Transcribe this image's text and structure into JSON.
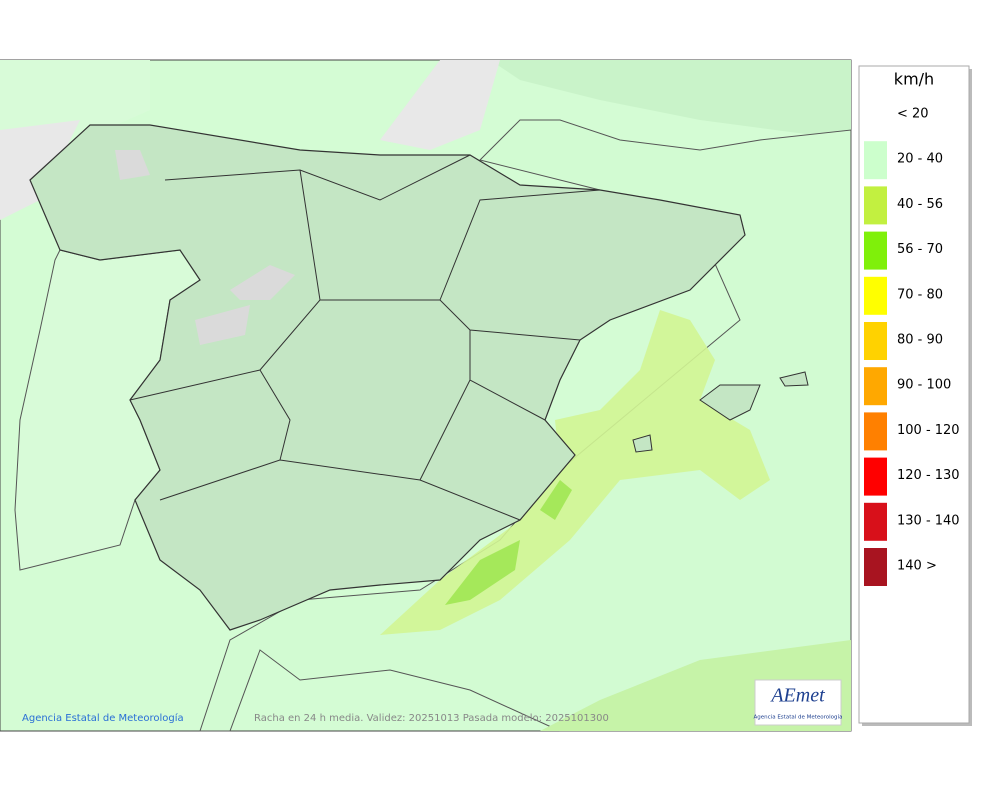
{
  "legend": {
    "title": "km/h",
    "items": [
      {
        "label": "< 20",
        "color": "#ffffff"
      },
      {
        "label": "20 - 40",
        "color": "#ccffcc"
      },
      {
        "label": "40 - 56",
        "color": "#c2f040"
      },
      {
        "label": "56 - 70",
        "color": "#7ff00a"
      },
      {
        "label": "70 - 80",
        "color": "#ffff00"
      },
      {
        "label": "80 - 90",
        "color": "#ffd200"
      },
      {
        "label": "90 - 100",
        "color": "#ffa800"
      },
      {
        "label": "100 - 120",
        "color": "#ff8000"
      },
      {
        "label": "120 - 130",
        "color": "#ff0000"
      },
      {
        "label": "130 - 140",
        "color": "#d8101a"
      },
      {
        "label": "140 >",
        "color": "#a81420"
      }
    ]
  },
  "footer": {
    "credit": "Agencia Estatal de Meteorología",
    "caption": "Racha en 24 h media. Validez: 20251013 Pasada modelo: 2025101300"
  },
  "logo": {
    "text": "AEmet",
    "subtitle": "Agencia Estatal de Meteorología"
  }
}
